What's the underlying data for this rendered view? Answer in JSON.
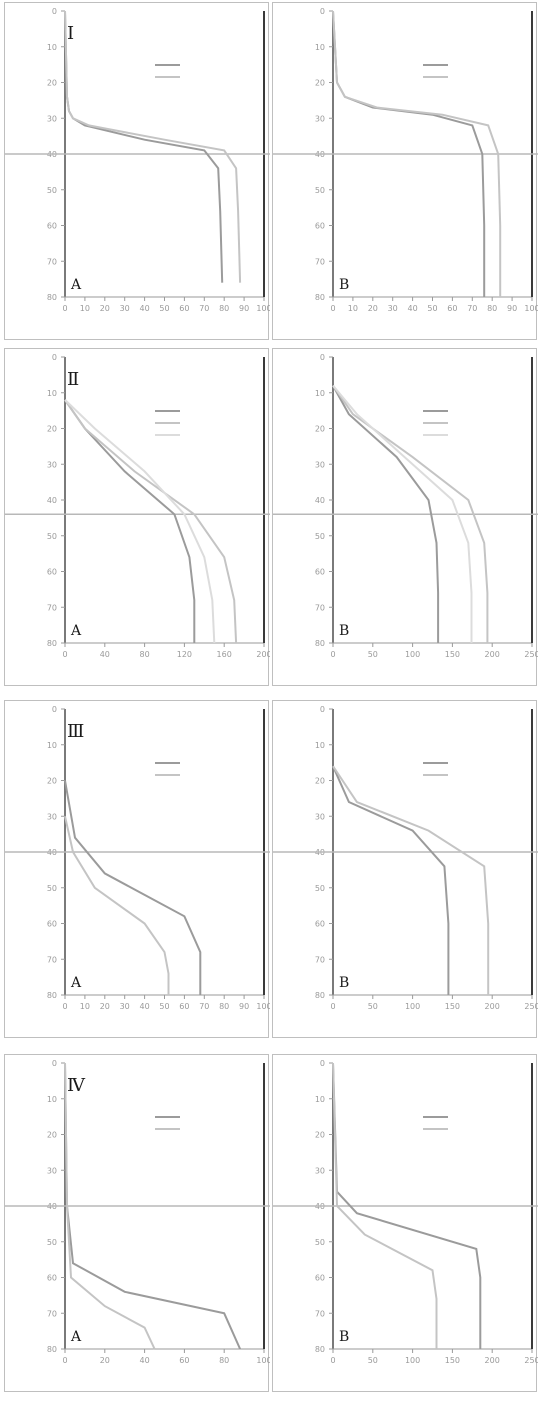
{
  "chart_data": [
    {
      "type": "line",
      "row": "Ⅰ",
      "panel": "A",
      "ylim": [
        80,
        0
      ],
      "xlim": [
        0,
        100
      ],
      "xticks": [
        0,
        10,
        20,
        30,
        40,
        50,
        60,
        70,
        80,
        90,
        100
      ],
      "hline": 40,
      "series": [
        {
          "x": [
            0,
            1,
            2,
            4,
            10,
            40,
            70,
            77,
            78,
            79
          ],
          "y": [
            0,
            24,
            28,
            30,
            32,
            36,
            39,
            44,
            56,
            76
          ]
        },
        {
          "x": [
            0,
            1,
            2,
            4,
            12,
            50,
            80,
            86,
            87,
            88
          ],
          "y": [
            0,
            24,
            28,
            30,
            32,
            36,
            39,
            44,
            56,
            76
          ]
        }
      ]
    },
    {
      "type": "line",
      "row": "Ⅰ",
      "panel": "B",
      "ylim": [
        80,
        0
      ],
      "xlim": [
        0,
        100
      ],
      "xticks": [
        0,
        10,
        20,
        30,
        40,
        50,
        60,
        70,
        80,
        90,
        100
      ],
      "hline": 40,
      "series": [
        {
          "x": [
            0,
            2,
            6,
            20,
            50,
            70,
            75,
            76,
            76
          ],
          "y": [
            0,
            20,
            24,
            27,
            29,
            32,
            40,
            60,
            80
          ]
        },
        {
          "x": [
            0,
            2,
            6,
            22,
            55,
            78,
            83,
            84,
            84
          ],
          "y": [
            0,
            20,
            24,
            27,
            29,
            32,
            40,
            60,
            80
          ]
        }
      ]
    },
    {
      "type": "line",
      "row": "Ⅱ",
      "panel": "A",
      "ylim": [
        80,
        0
      ],
      "xlim": [
        0,
        200
      ],
      "xticks": [
        0,
        40,
        80,
        120,
        160,
        200
      ],
      "hline": 44,
      "series": [
        {
          "x": [
            0,
            20,
            60,
            110,
            125,
            130,
            130
          ],
          "y": [
            12,
            20,
            32,
            44,
            56,
            68,
            80
          ]
        },
        {
          "x": [
            0,
            20,
            70,
            130,
            160,
            170,
            172
          ],
          "y": [
            12,
            20,
            32,
            44,
            56,
            68,
            80
          ]
        },
        {
          "x": [
            0,
            30,
            80,
            120,
            140,
            148,
            150
          ],
          "y": [
            12,
            20,
            32,
            44,
            56,
            68,
            80
          ]
        }
      ]
    },
    {
      "type": "line",
      "row": "Ⅱ",
      "panel": "B",
      "ylim": [
        80,
        0
      ],
      "xlim": [
        0,
        250
      ],
      "xticks": [
        0,
        50,
        100,
        150,
        200,
        250
      ],
      "hline": 44,
      "series": [
        {
          "x": [
            0,
            20,
            80,
            120,
            130,
            132,
            132
          ],
          "y": [
            8,
            16,
            28,
            40,
            52,
            66,
            80
          ]
        },
        {
          "x": [
            0,
            25,
            100,
            170,
            190,
            194,
            194
          ],
          "y": [
            8,
            16,
            28,
            40,
            52,
            66,
            80
          ]
        },
        {
          "x": [
            0,
            30,
            90,
            150,
            170,
            174,
            174
          ],
          "y": [
            8,
            16,
            28,
            40,
            52,
            66,
            80
          ]
        }
      ]
    },
    {
      "type": "line",
      "row": "Ⅲ",
      "panel": "A",
      "ylim": [
        80,
        0
      ],
      "xlim": [
        0,
        100
      ],
      "xticks": [
        0,
        10,
        20,
        30,
        40,
        50,
        60,
        70,
        80,
        90,
        100
      ],
      "hline": 40,
      "series": [
        {
          "x": [
            0,
            5,
            20,
            40,
            60,
            68,
            68
          ],
          "y": [
            20,
            36,
            46,
            52,
            58,
            68,
            80
          ]
        },
        {
          "x": [
            0,
            4,
            15,
            40,
            50,
            52,
            52
          ],
          "y": [
            30,
            40,
            50,
            60,
            68,
            74,
            80
          ]
        }
      ]
    },
    {
      "type": "line",
      "row": "Ⅲ",
      "panel": "B",
      "ylim": [
        80,
        0
      ],
      "xlim": [
        0,
        250
      ],
      "xticks": [
        0,
        50,
        100,
        150,
        200,
        250
      ],
      "hline": 40,
      "series": [
        {
          "x": [
            0,
            20,
            100,
            140,
            145,
            145
          ],
          "y": [
            16,
            26,
            34,
            44,
            60,
            80
          ]
        },
        {
          "x": [
            0,
            30,
            120,
            190,
            195,
            195
          ],
          "y": [
            16,
            26,
            34,
            44,
            60,
            80
          ]
        }
      ]
    },
    {
      "type": "line",
      "row": "Ⅳ",
      "panel": "A",
      "ylim": [
        80,
        0
      ],
      "xlim": [
        0,
        100
      ],
      "xticks": [
        0,
        20,
        40,
        60,
        80,
        100
      ],
      "hline": 40,
      "series": [
        {
          "x": [
            0,
            1,
            4,
            30,
            80,
            88
          ],
          "y": [
            0,
            40,
            56,
            64,
            70,
            80
          ]
        },
        {
          "x": [
            0,
            1,
            3,
            20,
            40,
            45
          ],
          "y": [
            0,
            40,
            60,
            68,
            74,
            80
          ]
        }
      ]
    },
    {
      "type": "line",
      "row": "Ⅳ",
      "panel": "B",
      "ylim": [
        80,
        0
      ],
      "xlim": [
        0,
        250
      ],
      "xticks": [
        0,
        50,
        100,
        150,
        200,
        250
      ],
      "hline": 40,
      "series": [
        {
          "x": [
            0,
            5,
            30,
            180,
            185,
            185
          ],
          "y": [
            0,
            36,
            42,
            52,
            60,
            80
          ]
        },
        {
          "x": [
            0,
            5,
            40,
            125,
            130,
            130
          ],
          "y": [
            0,
            40,
            48,
            58,
            66,
            80
          ]
        }
      ]
    }
  ]
}
